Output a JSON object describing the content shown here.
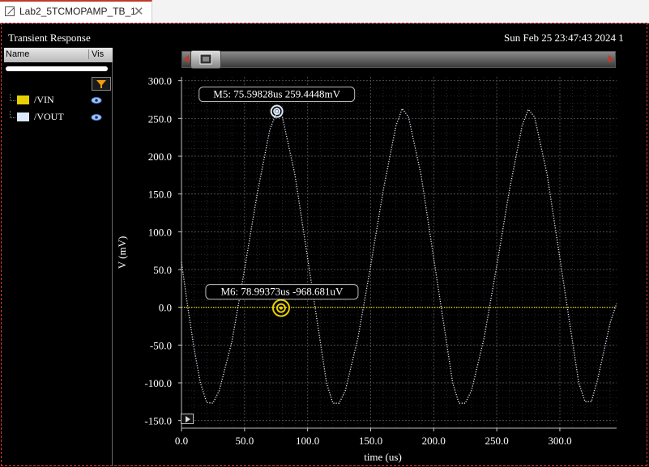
{
  "tab": {
    "label": "Lab2_5TCMOPAMP_TB_1",
    "close": "✕"
  },
  "plot": {
    "title": "Transient Response",
    "date": "Sun Feb 25 23:47:43 2024  1"
  },
  "side": {
    "col_name": "Name",
    "col_vis": "Vis",
    "signals": [
      {
        "label": "/VIN",
        "color": "#e8d000"
      },
      {
        "label": "/VOUT",
        "color": "#dde8f8"
      }
    ]
  },
  "chart_data": {
    "type": "line",
    "xlabel": "time (us)",
    "ylabel": "V  (mV)",
    "xlim": [
      0,
      345
    ],
    "ylim": [
      -160,
      305
    ],
    "xticks": [
      "0.0",
      "50.0",
      "100.0",
      "150.0",
      "200.0",
      "250.0",
      "300.0"
    ],
    "xtick_values": [
      0,
      50,
      100,
      150,
      200,
      250,
      300
    ],
    "yticks": [
      "300.0",
      "250.0",
      "200.0",
      "150.0",
      "100.0",
      "50.0",
      "0.0",
      "-50.0",
      "-100.0",
      "-150.0"
    ],
    "ytick_values": [
      300,
      250,
      200,
      150,
      100,
      50,
      0,
      -50,
      -100,
      -150
    ],
    "grid": true,
    "series": [
      {
        "name": "/VIN",
        "description": "flat near 0 mV",
        "x": [
          0,
          345
        ],
        "y": [
          0,
          0
        ]
      },
      {
        "name": "/VOUT",
        "description": "clipped sinusoid, period ~100us, peak ~260 mV, trough ~-127 mV",
        "x": [
          0,
          5,
          10,
          15,
          20,
          25,
          30,
          40,
          50,
          60,
          70,
          75.6,
          80,
          90,
          100,
          110,
          115,
          120,
          125,
          130,
          140,
          150,
          160,
          170,
          175,
          180,
          190,
          200,
          210,
          215,
          220,
          225,
          230,
          240,
          250,
          260,
          270,
          275,
          280,
          290,
          300,
          310,
          315,
          320,
          325,
          330,
          340,
          345
        ],
        "y": [
          60,
          0,
          -55,
          -100,
          -126,
          -127,
          -110,
          -45,
          50,
          150,
          235,
          259,
          252,
          175,
          65,
          -45,
          -100,
          -127,
          -127,
          -110,
          -40,
          55,
          155,
          240,
          263,
          252,
          175,
          65,
          -45,
          -100,
          -127,
          -127,
          -110,
          -40,
          55,
          155,
          240,
          262,
          252,
          175,
          65,
          -45,
          -100,
          -125,
          -125,
          -95,
          -20,
          5
        ]
      }
    ],
    "markers": [
      {
        "label": "M5: 75.59828us 259.4448mV",
        "x": 75.6,
        "y": 259.4,
        "color": "#dde8f8"
      },
      {
        "label": "M6: 78.99373us -968.681uV",
        "x": 78.99,
        "y": -0.97,
        "color": "#e8d000"
      }
    ]
  }
}
